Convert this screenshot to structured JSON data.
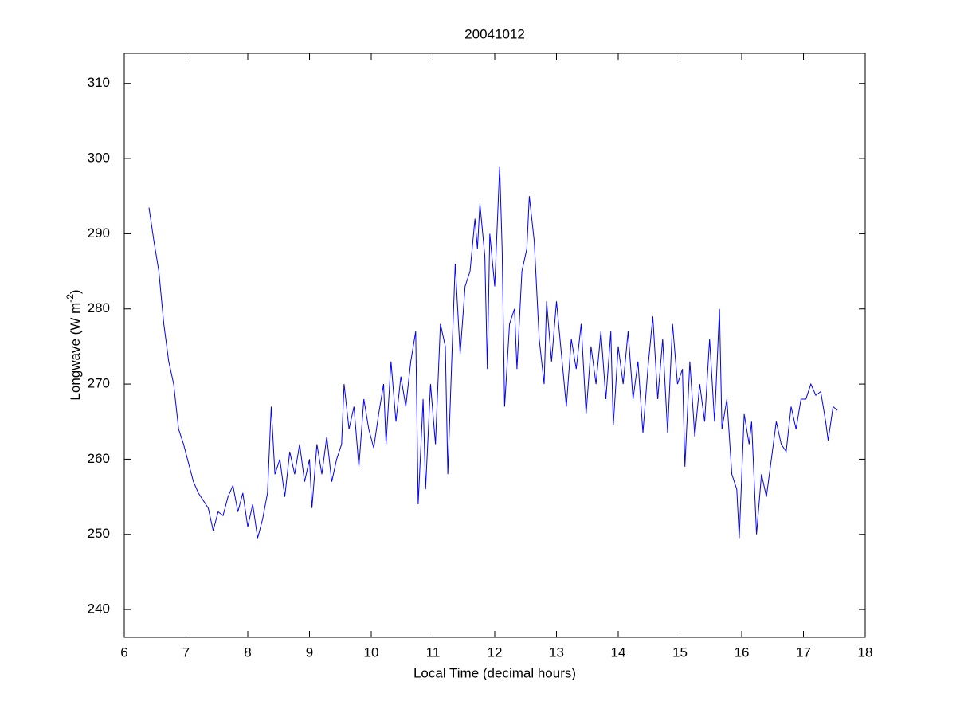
{
  "chart_data": {
    "type": "line",
    "title": "20041012",
    "xlabel": "Local Time (decimal hours)",
    "ylabel": [
      "Longwave (W m",
      "-2",
      ")"
    ],
    "color": "#0000ff",
    "xlim": [
      6,
      18
    ],
    "xticks": [
      6,
      7,
      8,
      9,
      10,
      11,
      12,
      13,
      14,
      15,
      16,
      17,
      18
    ],
    "ylim": [
      236.3,
      314
    ],
    "yticks": [
      240,
      250,
      260,
      270,
      280,
      290,
      300,
      310
    ],
    "x": [
      6.4,
      6.48,
      6.56,
      6.64,
      6.72,
      6.8,
      6.88,
      6.96,
      7.04,
      7.12,
      7.2,
      7.28,
      7.36,
      7.44,
      7.52,
      7.6,
      7.68,
      7.76,
      7.84,
      7.92,
      8.0,
      8.08,
      8.16,
      8.24,
      8.32,
      8.38,
      8.44,
      8.52,
      8.6,
      8.68,
      8.76,
      8.84,
      8.92,
      9.0,
      9.04,
      9.12,
      9.2,
      9.28,
      9.36,
      9.44,
      9.52,
      9.56,
      9.64,
      9.72,
      9.8,
      9.88,
      9.96,
      10.04,
      10.12,
      10.2,
      10.24,
      10.32,
      10.4,
      10.48,
      10.56,
      10.64,
      10.72,
      10.76,
      10.84,
      10.88,
      10.96,
      11.04,
      11.12,
      11.2,
      11.24,
      11.32,
      11.36,
      11.44,
      11.52,
      11.6,
      11.68,
      11.72,
      11.76,
      11.84,
      11.88,
      11.92,
      12.0,
      12.08,
      12.12,
      12.16,
      12.24,
      12.32,
      12.36,
      12.44,
      12.52,
      12.56,
      12.64,
      12.72,
      12.8,
      12.84,
      12.92,
      13.0,
      13.08,
      13.16,
      13.24,
      13.32,
      13.4,
      13.48,
      13.56,
      13.64,
      13.72,
      13.8,
      13.88,
      13.92,
      14.0,
      14.08,
      14.16,
      14.24,
      14.32,
      14.4,
      14.48,
      14.56,
      14.64,
      14.72,
      14.8,
      14.88,
      14.96,
      15.04,
      15.08,
      15.16,
      15.24,
      15.32,
      15.4,
      15.48,
      15.56,
      15.64,
      15.68,
      15.76,
      15.84,
      15.92,
      15.96,
      16.04,
      16.12,
      16.16,
      16.24,
      16.32,
      16.4,
      16.48,
      16.56,
      16.64,
      16.72,
      16.8,
      16.88,
      16.96,
      17.04,
      17.12,
      17.2,
      17.28,
      17.36,
      17.4,
      17.48,
      17.55
    ],
    "values": [
      293.5,
      289,
      285,
      278,
      273,
      270,
      264,
      262,
      259.5,
      257,
      255.5,
      254.5,
      253.5,
      250.5,
      253,
      252.5,
      255,
      256.5,
      253,
      255.5,
      251,
      254,
      249.5,
      252,
      255.5,
      267,
      258,
      260,
      255,
      261,
      258,
      262,
      257,
      260,
      253.5,
      262,
      258,
      263,
      257,
      260,
      262,
      270,
      264,
      267,
      259,
      268,
      264,
      261.5,
      266,
      270,
      262,
      273,
      265,
      271,
      267,
      273,
      277,
      254,
      268,
      256,
      270,
      262,
      278,
      275,
      258,
      277,
      286,
      274,
      283,
      285,
      292,
      288,
      294,
      287,
      272,
      290,
      283,
      299,
      288,
      267,
      278,
      280,
      272,
      285,
      288,
      295,
      289,
      276,
      270,
      281,
      273,
      281,
      274,
      267,
      276,
      272,
      278,
      266,
      275,
      270,
      277,
      268,
      277,
      264.5,
      275,
      270,
      277,
      268,
      273,
      263.5,
      272,
      279,
      268,
      276,
      263.5,
      278,
      270,
      272,
      259,
      273,
      263,
      270,
      265,
      276,
      265,
      280,
      264,
      268,
      258,
      256,
      249.5,
      266,
      262,
      265,
      250,
      258,
      255,
      260,
      265,
      262,
      261,
      267,
      264,
      268,
      268,
      270,
      268.5,
      269,
      265,
      262.5,
      267,
      266.5
    ]
  }
}
